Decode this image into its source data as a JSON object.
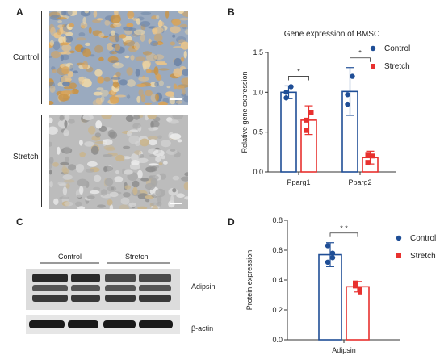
{
  "panels": {
    "a": {
      "letter": "A",
      "rows": [
        {
          "label": "Control"
        },
        {
          "label": "Stretch"
        }
      ]
    },
    "b": {
      "letter": "B",
      "chart_data": {
        "type": "bar",
        "title": "Gene expression of BMSC",
        "ylabel": "Relative  gene expression",
        "xlabel": "",
        "categories": [
          "Pparg1",
          "Pparg2"
        ],
        "ylim": [
          0,
          1.5
        ],
        "yticks": [
          "0.0",
          "0.5",
          "1.0",
          "1.5"
        ],
        "series": [
          {
            "name": "Control",
            "color": "#1f4e96",
            "values": [
              1.0,
              1.01
            ],
            "errors": [
              0.08,
              0.3
            ],
            "points": [
              [
                0.93,
                1.07,
                1.0
              ],
              [
                0.85,
                1.2,
                0.97
              ]
            ]
          },
          {
            "name": "Stretch",
            "color": "#e8312f",
            "values": [
              0.65,
              0.18
            ],
            "errors": [
              0.18,
              0.08
            ],
            "points": [
              [
                0.52,
                0.75,
                0.65
              ],
              [
                0.12,
                0.2,
                0.22
              ]
            ]
          }
        ],
        "significance": [
          "*",
          "*"
        ],
        "legend": "top-right"
      }
    },
    "c": {
      "letter": "C",
      "groups": [
        "Control",
        "Stretch"
      ],
      "bands": [
        "Adipsin",
        "β-actin"
      ]
    },
    "d": {
      "letter": "D",
      "chart_data": {
        "type": "bar",
        "title": "",
        "ylabel": "Protein expression",
        "xlabel": "",
        "categories": [
          "Adipsin"
        ],
        "ylim": [
          0,
          0.8
        ],
        "yticks": [
          "0.0",
          "0.2",
          "0.4",
          "0.6",
          "0.8"
        ],
        "series": [
          {
            "name": "Control",
            "color": "#1f4e96",
            "values": [
              0.57
            ],
            "errors": [
              0.08
            ],
            "points": [
              [
                0.63,
                0.55,
                0.52,
                0.58
              ]
            ]
          },
          {
            "name": "Stretch",
            "color": "#e8312f",
            "values": [
              0.355
            ],
            "errors": [
              0.035
            ],
            "points": [
              [
                0.38,
                0.34,
                0.36,
                0.32
              ]
            ]
          }
        ],
        "significance": [
          "* *"
        ],
        "legend": "top-right"
      }
    }
  }
}
